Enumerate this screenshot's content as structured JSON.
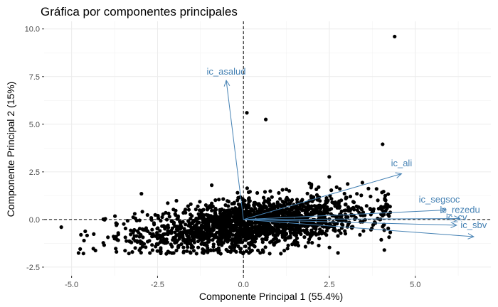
{
  "chart_data": {
    "type": "scatter",
    "title": "Gráfica por componentes principales",
    "xlabel": "Componente Principal 1 (55.4%)",
    "ylabel": "Componente Principal 2 (15%)",
    "xlim": [
      -5.8,
      7.2
    ],
    "ylim": [
      -2.95,
      10.4
    ],
    "x_ticks": [
      -5.0,
      -2.5,
      0.0,
      2.5,
      5.0
    ],
    "x_tick_labels": [
      "-5.0",
      "-2.5",
      "0.0",
      "2.5",
      "5.0"
    ],
    "y_ticks": [
      -2.5,
      0.0,
      2.5,
      5.0,
      7.5,
      10.0
    ],
    "y_tick_labels": [
      "-2.5",
      "0.0",
      "2.5",
      "5.0",
      "7.5",
      "10.0"
    ],
    "grid": true,
    "reference_lines": {
      "x": 0,
      "y": 0,
      "style": "dashed"
    },
    "point_color": "#000000",
    "arrow_color": "#4682b4",
    "point_count_estimate": 2000,
    "notable_points": [
      {
        "x": 4.4,
        "y": 9.6
      },
      {
        "x": 0.1,
        "y": 5.6
      },
      {
        "x": 0.65,
        "y": 5.25
      },
      {
        "x": 4.05,
        "y": 3.95
      },
      {
        "x": -5.3,
        "y": -0.4
      },
      {
        "x": 4.1,
        "y": -1.6
      }
    ],
    "arrows": [
      {
        "name": "ic_asalud",
        "x": -0.5,
        "y": 7.3,
        "label_x": -0.5,
        "label_y": 7.6
      },
      {
        "name": "ic_ali",
        "x": 4.6,
        "y": 2.4,
        "label_x": 4.6,
        "label_y": 2.8
      },
      {
        "name": "ic_segsoc",
        "x": 5.9,
        "y": 0.5,
        "label_x": 5.7,
        "label_y": 0.9
      },
      {
        "name": "ic_rezedu",
        "x": 6.3,
        "y": 0.05,
        "label_x": 6.3,
        "label_y": 0.35
      },
      {
        "name": "ic_cv",
        "x": 6.2,
        "y": -0.3,
        "label_x": 6.2,
        "label_y": -0.05
      },
      {
        "name": "ic_sbv",
        "x": 6.7,
        "y": -0.9,
        "label_x": 6.7,
        "label_y": -0.45
      }
    ]
  }
}
